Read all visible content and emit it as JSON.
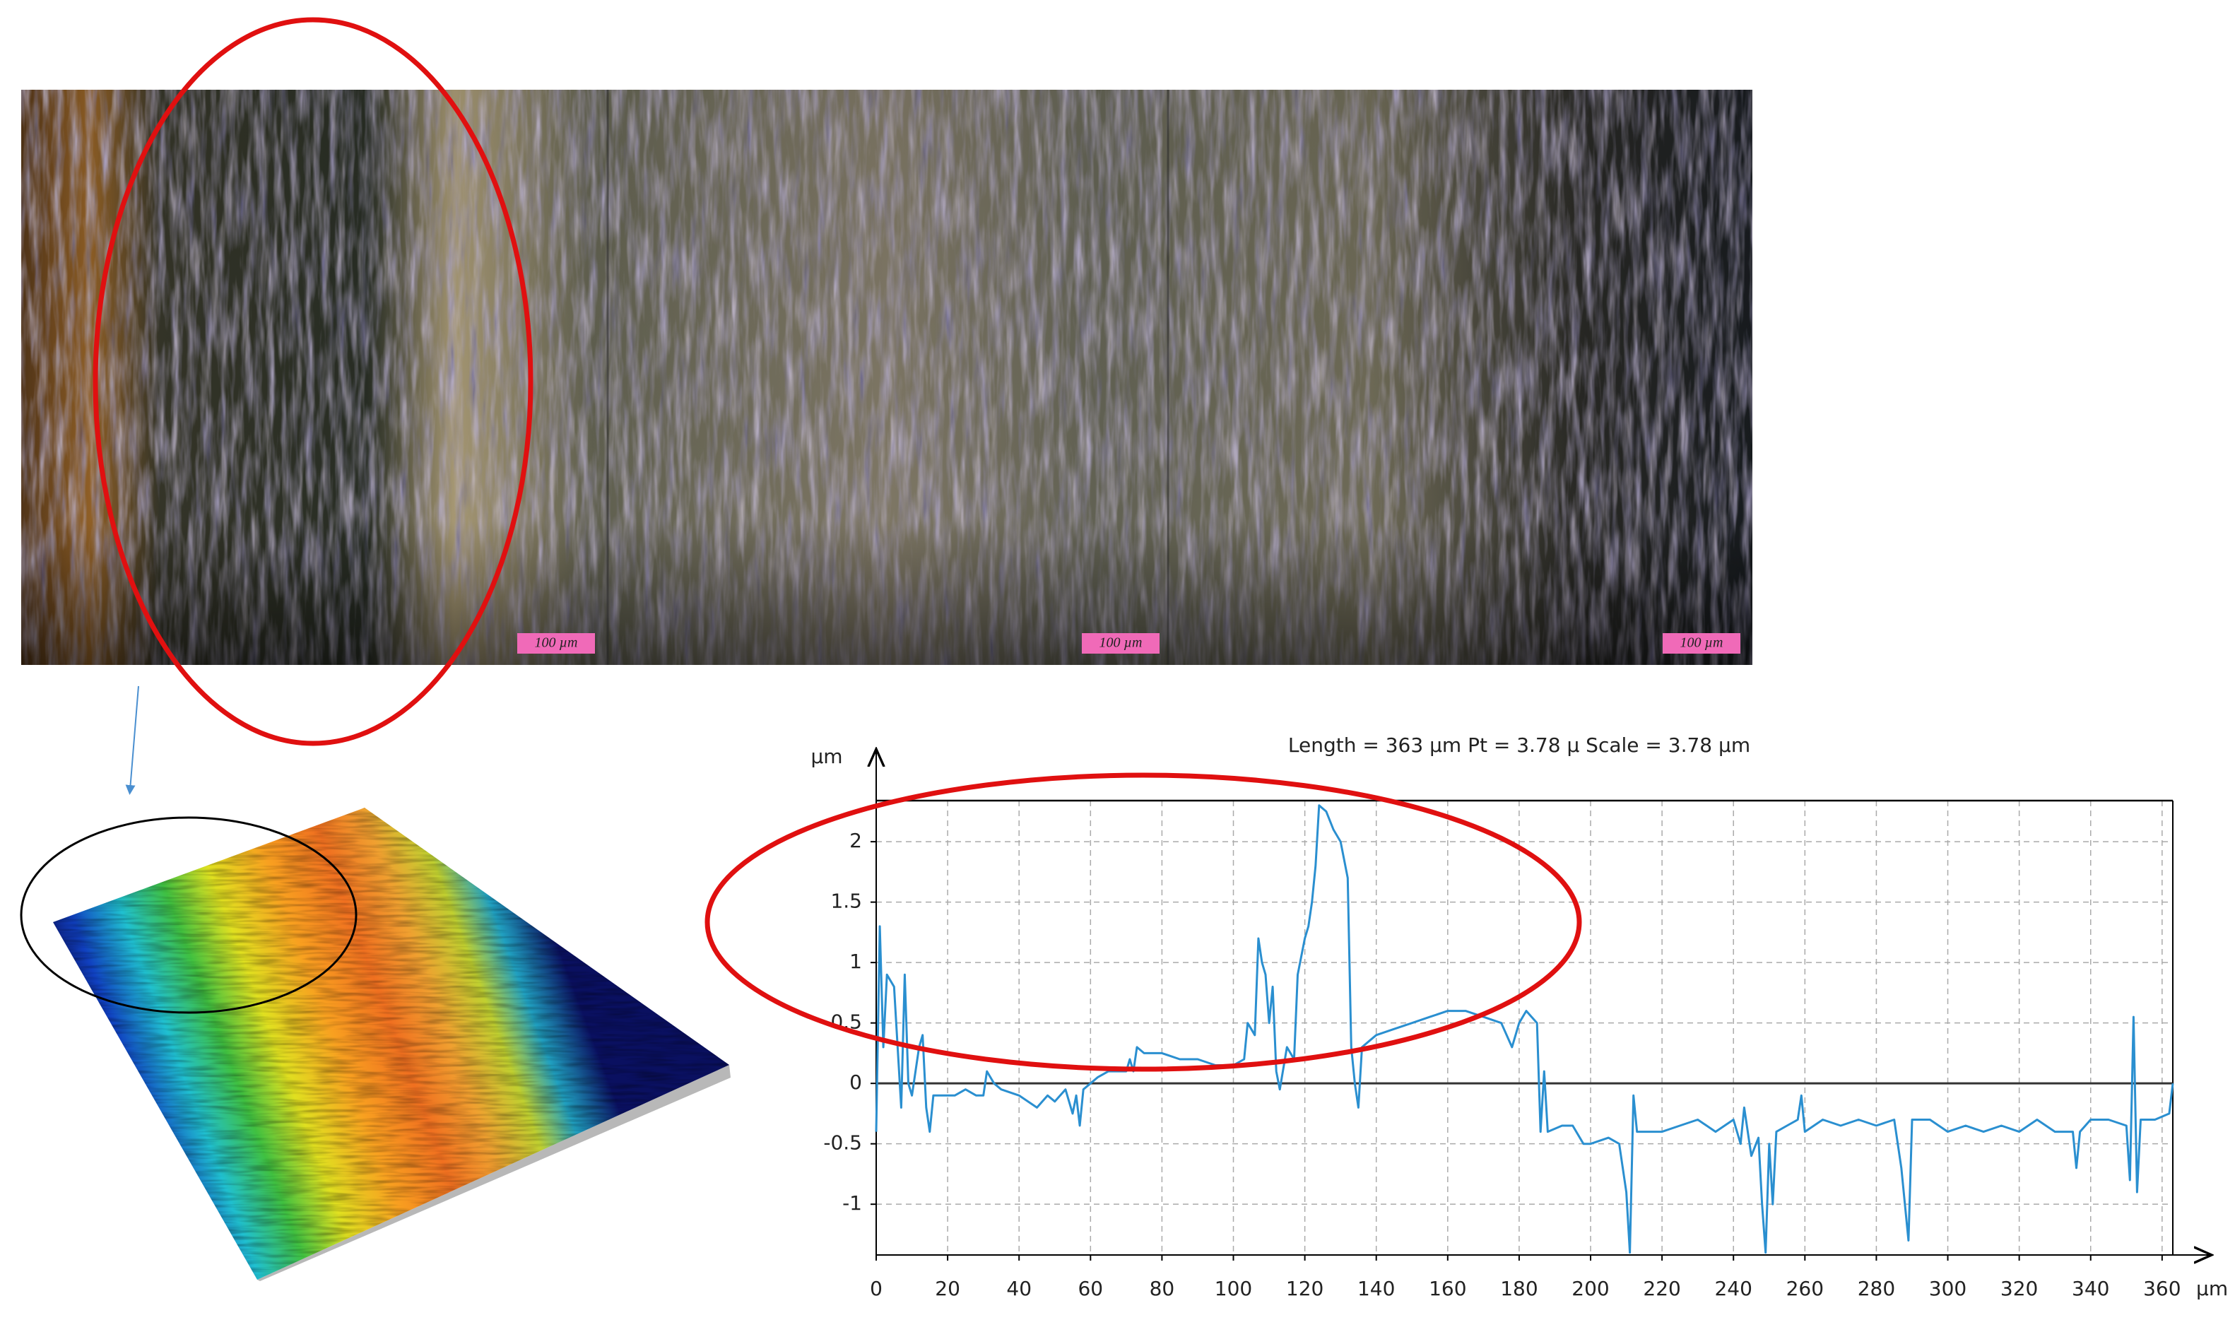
{
  "micrograph": {
    "scale_labels": [
      "100 µm",
      "100 µm",
      "100 µm"
    ]
  },
  "chart_data": {
    "type": "line",
    "title": "Length   = 363 µm  Pt = 3.78 µ  Scale   = 3.78 µm",
    "y_label": "µm",
    "x_label": "µm",
    "xlim": [
      0,
      363
    ],
    "ylim": [
      -1.42,
      2.34
    ],
    "xticks": [
      0,
      20,
      40,
      60,
      80,
      100,
      120,
      140,
      160,
      180,
      200,
      220,
      240,
      260,
      280,
      300,
      320,
      340,
      360
    ],
    "yticks": [
      -1,
      -0.5,
      0,
      0.5,
      1,
      1.5,
      2
    ],
    "grid": true,
    "color": "#2a8fd0",
    "x": [
      0,
      1,
      2,
      3,
      5,
      7,
      8,
      9,
      10,
      12,
      13,
      14,
      15,
      16,
      18,
      22,
      25,
      28,
      30,
      31,
      33,
      35,
      40,
      45,
      48,
      50,
      53,
      55,
      56,
      57,
      58,
      60,
      62,
      65,
      70,
      71,
      72,
      73,
      75,
      80,
      85,
      90,
      95,
      100,
      103,
      104,
      106,
      107,
      108,
      109,
      110,
      111,
      112,
      113,
      115,
      117,
      118,
      120,
      121,
      122,
      123,
      124,
      126,
      128,
      130,
      132,
      133,
      134,
      135,
      136,
      138,
      140,
      145,
      150,
      155,
      160,
      165,
      170,
      175,
      178,
      180,
      182,
      185,
      186,
      187,
      188,
      192,
      195,
      198,
      200,
      205,
      208,
      210,
      211,
      212,
      213,
      220,
      225,
      230,
      235,
      240,
      242,
      243,
      245,
      247,
      248,
      249,
      250,
      251,
      252,
      255,
      258,
      259,
      260,
      265,
      270,
      275,
      280,
      285,
      287,
      289,
      290,
      295,
      300,
      305,
      310,
      315,
      320,
      325,
      330,
      335,
      336,
      337,
      340,
      345,
      350,
      351,
      352,
      353,
      354,
      358,
      362,
      363
    ],
    "values": [
      -0.4,
      1.3,
      0.3,
      0.9,
      0.8,
      -0.2,
      0.9,
      0,
      -0.1,
      0.3,
      0.4,
      -0.2,
      -0.4,
      -0.1,
      -0.1,
      -0.1,
      -0.05,
      -0.1,
      -0.1,
      0.1,
      0,
      -0.05,
      -0.1,
      -0.2,
      -0.1,
      -0.15,
      -0.05,
      -0.25,
      -0.1,
      -0.35,
      -0.05,
      0,
      0.05,
      0.1,
      0.1,
      0.2,
      0.1,
      0.3,
      0.25,
      0.25,
      0.2,
      0.2,
      0.15,
      0.15,
      0.2,
      0.5,
      0.4,
      1.2,
      1.0,
      0.9,
      0.5,
      0.8,
      0.1,
      -0.05,
      0.3,
      0.2,
      0.9,
      1.2,
      1.3,
      1.5,
      1.8,
      2.3,
      2.25,
      2.1,
      2.0,
      1.7,
      0.3,
      0.0,
      -0.2,
      0.3,
      0.35,
      0.4,
      0.45,
      0.5,
      0.55,
      0.6,
      0.6,
      0.55,
      0.5,
      0.3,
      0.5,
      0.6,
      0.5,
      -0.4,
      0.1,
      -0.4,
      -0.35,
      -0.35,
      -0.5,
      -0.5,
      -0.45,
      -0.5,
      -0.9,
      -1.4,
      -0.1,
      -0.4,
      -0.4,
      -0.35,
      -0.3,
      -0.4,
      -0.3,
      -0.5,
      -0.2,
      -0.6,
      -0.45,
      -1.0,
      -1.4,
      -0.5,
      -1.0,
      -0.4,
      -0.35,
      -0.3,
      -0.1,
      -0.4,
      -0.3,
      -0.35,
      -0.3,
      -0.35,
      -0.3,
      -0.7,
      -1.3,
      -0.3,
      -0.3,
      -0.4,
      -0.35,
      -0.4,
      -0.35,
      -0.4,
      -0.3,
      -0.4,
      -0.4,
      -0.7,
      -0.4,
      -0.3,
      -0.3,
      -0.35,
      -0.8,
      0.55,
      -0.9,
      -0.3,
      -0.3,
      -0.25,
      0.0
    ]
  }
}
